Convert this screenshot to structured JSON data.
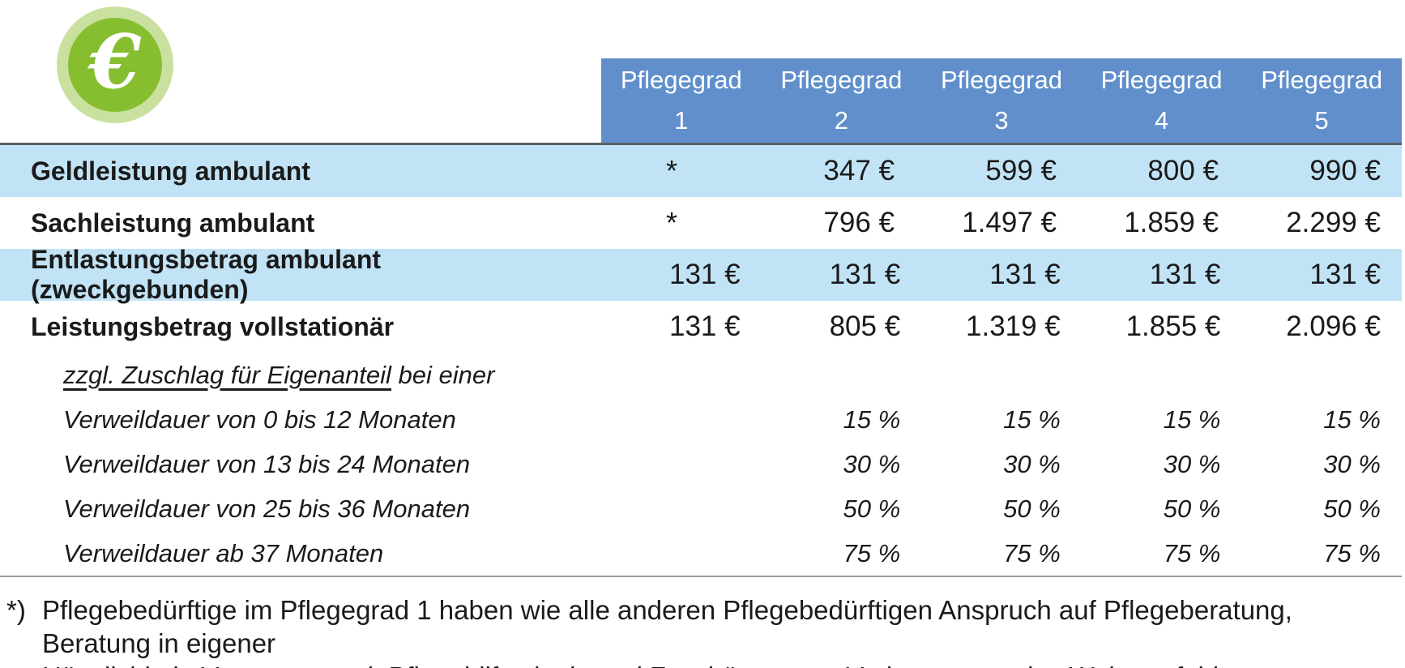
{
  "icon": {
    "symbol": "€",
    "inner_color": "#86BE30",
    "ring_color": "#C9E09E"
  },
  "colors": {
    "header_bg": "#608FCB",
    "header_text": "#FFFFFF",
    "highlight_row_bg": "#C1E3F5",
    "body_text": "#1A1A1A",
    "top_border": "#5A6065",
    "bottom_border": "#9C9C9C"
  },
  "table": {
    "header": {
      "label": "Pflegegrad",
      "grades": [
        "1",
        "2",
        "3",
        "4",
        "5"
      ]
    },
    "rows": [
      {
        "label": "Geldleistung ambulant",
        "values": [
          "*",
          "347 €",
          "599 €",
          "800 €",
          "990 €"
        ]
      },
      {
        "label": "Sachleistung ambulant",
        "values": [
          "*",
          "796 €",
          "1.497 €",
          "1.859 €",
          "2.299 €"
        ]
      },
      {
        "label": "Entlastungsbetrag ambulant (zweckgebunden)",
        "values": [
          "131 €",
          "131 €",
          "131 €",
          "131 €",
          "131 €"
        ]
      },
      {
        "label": "Leistungsbetrag vollstationär",
        "values": [
          "131 €",
          "805 €",
          "1.319 €",
          "1.855 €",
          "2.096 €"
        ]
      }
    ],
    "surcharge_note": {
      "underlined": "zzgl. Zuschlag für Eigenanteil",
      "rest": " bei einer"
    },
    "surcharge_rows": [
      {
        "label": "Verweildauer von 0 bis 12 Monaten",
        "values": [
          "",
          "15 %",
          "15 %",
          "15 %",
          "15 %"
        ]
      },
      {
        "label": "Verweildauer von 13 bis 24 Monaten",
        "values": [
          "",
          "30 %",
          "30 %",
          "30 %",
          "30 %"
        ]
      },
      {
        "label": "Verweildauer von 25 bis 36 Monaten",
        "values": [
          "",
          "50 %",
          "50 %",
          "50 %",
          "50 %"
        ]
      },
      {
        "label": "Verweildauer ab 37 Monaten",
        "values": [
          "",
          "75 %",
          "75 %",
          "75 %",
          "75 %"
        ]
      }
    ]
  },
  "footnote": {
    "marker": "*)",
    "lines": [
      "Pflegebedürftige im Pflegegrad 1 haben wie alle anderen Pflegebedürftigen Anspruch auf Pflegeberatung, Beratung in eigener",
      "Häuslichkeit, Versorgung mit Pflegehilfsmitteln und Zuschüssen zur Verbesserung des Wohnumfeldes."
    ]
  }
}
